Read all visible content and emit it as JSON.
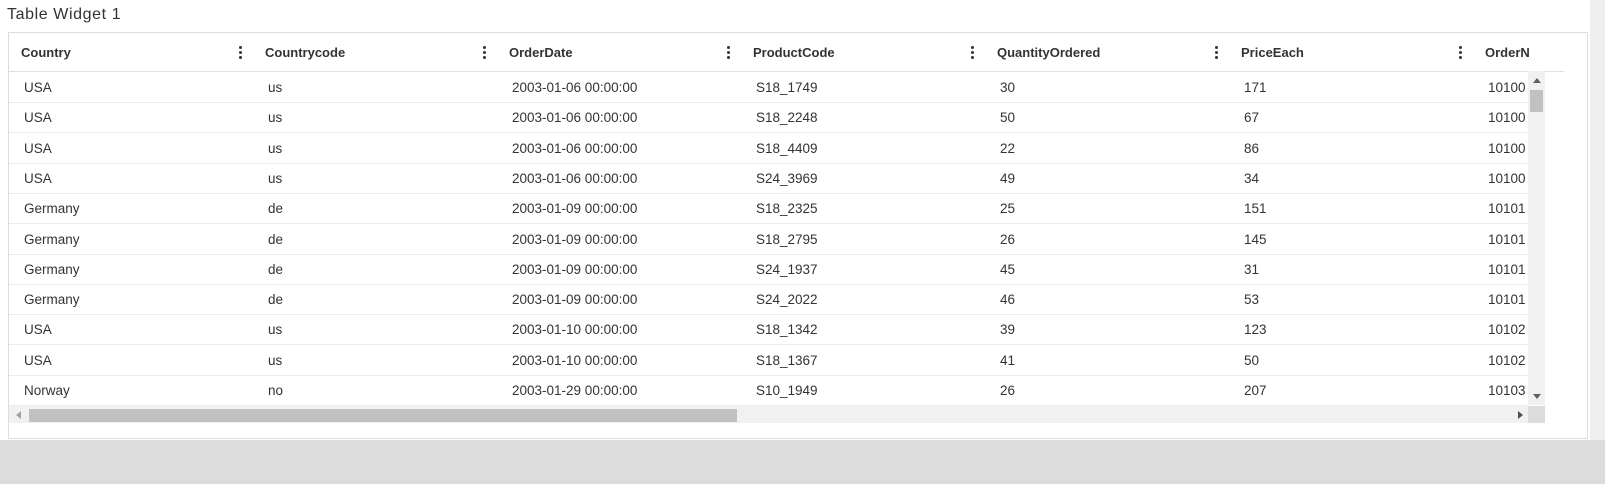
{
  "widget": {
    "title": "Table Widget 1"
  },
  "table": {
    "columns": [
      "Country",
      "Countrycode",
      "OrderDate",
      "ProductCode",
      "QuantityOrdered",
      "PriceEach",
      "OrderN"
    ],
    "rows": [
      [
        "USA",
        "us",
        "2003-01-06 00:00:00",
        "S18_1749",
        "30",
        "171",
        "10100"
      ],
      [
        "USA",
        "us",
        "2003-01-06 00:00:00",
        "S18_2248",
        "50",
        "67",
        "10100"
      ],
      [
        "USA",
        "us",
        "2003-01-06 00:00:00",
        "S18_4409",
        "22",
        "86",
        "10100"
      ],
      [
        "USA",
        "us",
        "2003-01-06 00:00:00",
        "S24_3969",
        "49",
        "34",
        "10100"
      ],
      [
        "Germany",
        "de",
        "2003-01-09 00:00:00",
        "S18_2325",
        "25",
        "151",
        "10101"
      ],
      [
        "Germany",
        "de",
        "2003-01-09 00:00:00",
        "S18_2795",
        "26",
        "145",
        "10101"
      ],
      [
        "Germany",
        "de",
        "2003-01-09 00:00:00",
        "S24_1937",
        "45",
        "31",
        "10101"
      ],
      [
        "Germany",
        "de",
        "2003-01-09 00:00:00",
        "S24_2022",
        "46",
        "53",
        "10101"
      ],
      [
        "USA",
        "us",
        "2003-01-10 00:00:00",
        "S18_1342",
        "39",
        "123",
        "10102"
      ],
      [
        "USA",
        "us",
        "2003-01-10 00:00:00",
        "S18_1367",
        "41",
        "50",
        "10102"
      ],
      [
        "Norway",
        "no",
        "2003-01-29 00:00:00",
        "S10_1949",
        "26",
        "207",
        "10103"
      ]
    ]
  }
}
